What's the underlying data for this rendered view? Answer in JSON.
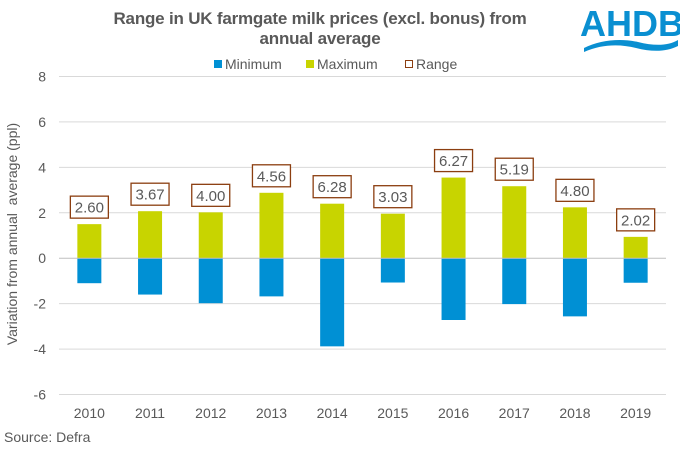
{
  "header": {
    "title_line1": "Range in UK farmgate milk prices (excl. bonus) from",
    "title_line2": "annual average",
    "logo_text": "AHDB"
  },
  "footer": {
    "source": "Source:  Defra"
  },
  "colors": {
    "minimum": "#0090D4",
    "maximum": "#C8D400",
    "range_border": "#8B3E10",
    "gridline": "#D9D9D9",
    "zero_line": "#BFBFBF",
    "text": "#595959",
    "logo": "#0A8FD1"
  },
  "chart_data": {
    "type": "bar",
    "title": "Range in UK farmgate milk prices (excl. bonus) from annual average",
    "xlabel": "",
    "ylabel": "Variation from annual  average (ppl)",
    "ylim": [
      -6,
      8
    ],
    "yticks": [
      8,
      6,
      4,
      2,
      0,
      -2,
      -4,
      -6
    ],
    "grid": true,
    "legend": {
      "placement": "top-center",
      "entries": [
        "Minimum",
        "Maximum",
        "Range"
      ]
    },
    "categories": [
      "2010",
      "2011",
      "2012",
      "2013",
      "2014",
      "2015",
      "2016",
      "2017",
      "2018",
      "2019"
    ],
    "series": [
      {
        "name": "Minimum",
        "values": [
          -1.1,
          -1.6,
          -1.98,
          -1.68,
          -3.88,
          -1.07,
          -2.72,
          -2.02,
          -2.56,
          -1.08
        ]
      },
      {
        "name": "Maximum",
        "values": [
          1.5,
          2.07,
          2.02,
          2.88,
          2.4,
          1.96,
          3.55,
          3.17,
          2.24,
          0.94
        ]
      },
      {
        "name": "Range",
        "values": [
          2.6,
          3.67,
          4.0,
          4.56,
          6.28,
          3.03,
          6.27,
          5.19,
          4.8,
          2.02
        ],
        "labels": [
          "2.60",
          "3.67",
          "4.00",
          "4.56",
          "6.28",
          "3.03",
          "6.27",
          "5.19",
          "4.80",
          "2.02"
        ]
      }
    ],
    "source": "Source:  Defra"
  }
}
